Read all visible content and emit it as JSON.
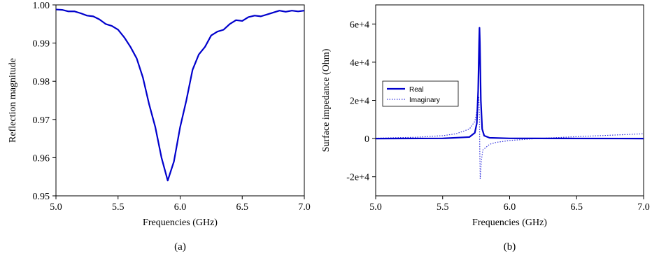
{
  "chart_data": [
    {
      "type": "line",
      "caption": "(a)",
      "title": "",
      "xlabel": "Frequencies (GHz)",
      "ylabel": "Reflection magnitude",
      "xlim": [
        5.0,
        7.0
      ],
      "ylim": [
        0.95,
        1.0
      ],
      "xticks": [
        "5.0",
        "5.5",
        "6.0",
        "6.5",
        "7.0"
      ],
      "yticks": [
        "0.95",
        "0.96",
        "0.97",
        "0.98",
        "0.99",
        "1.00"
      ],
      "grid": false,
      "series": [
        {
          "color": "#0000cc",
          "x": [
            5.0,
            5.05,
            5.1,
            5.15,
            5.2,
            5.25,
            5.3,
            5.35,
            5.4,
            5.45,
            5.5,
            5.55,
            5.6,
            5.65,
            5.7,
            5.75,
            5.8,
            5.85,
            5.9,
            5.95,
            6.0,
            6.05,
            6.1,
            6.15,
            6.2,
            6.25,
            6.3,
            6.35,
            6.4,
            6.45,
            6.5,
            6.55,
            6.6,
            6.65,
            6.7,
            6.75,
            6.8,
            6.85,
            6.9,
            6.95,
            7.0
          ],
          "y": [
            0.9988,
            0.9987,
            0.9983,
            0.9983,
            0.9978,
            0.9972,
            0.997,
            0.9962,
            0.995,
            0.9945,
            0.9935,
            0.9915,
            0.989,
            0.986,
            0.981,
            0.974,
            0.968,
            0.96,
            0.954,
            0.959,
            0.968,
            0.975,
            0.983,
            0.987,
            0.989,
            0.992,
            0.993,
            0.9935,
            0.995,
            0.996,
            0.9958,
            0.9968,
            0.9972,
            0.997,
            0.9975,
            0.998,
            0.9985,
            0.9982,
            0.9985,
            0.9983,
            0.9985
          ]
        }
      ]
    },
    {
      "type": "line",
      "caption": "(b)",
      "title": "",
      "xlabel": "Frequencies (GHz)",
      "ylabel": "Surface impedance (Ohm)",
      "xlim": [
        5.0,
        7.0
      ],
      "ylim": [
        -30000,
        70000
      ],
      "xticks": [
        "5.0",
        "5.5",
        "6.0",
        "6.5",
        "7.0"
      ],
      "yticks": [
        "-2e+4",
        "0",
        "2e+4",
        "4e+4",
        "6e+4"
      ],
      "grid": false,
      "legend": "left",
      "series": [
        {
          "name": "Real",
          "style": "solid",
          "color": "#0000cc",
          "x": [
            5.0,
            5.5,
            5.7,
            5.74,
            5.755,
            5.765,
            5.772,
            5.775,
            5.778,
            5.785,
            5.795,
            5.81,
            5.85,
            6.0,
            7.0
          ],
          "y": [
            0,
            100,
            800,
            3000,
            8000,
            25000,
            50000,
            58000,
            50000,
            20000,
            5000,
            1500,
            400,
            100,
            0
          ]
        },
        {
          "name": "Imaginary",
          "style": "dotted",
          "color": "#3333dd",
          "x": [
            5.0,
            5.3,
            5.5,
            5.6,
            5.7,
            5.74,
            5.76,
            5.77,
            5.775,
            5.777,
            5.78,
            5.785,
            5.79,
            5.8,
            5.85,
            5.9,
            6.0,
            6.2,
            6.5,
            7.0
          ],
          "y": [
            200,
            700,
            1500,
            2500,
            5000,
            9000,
            16000,
            22000,
            10000,
            -5000,
            -21000,
            -16000,
            -11000,
            -6000,
            -3000,
            -2000,
            -1000,
            0,
            1000,
            2500
          ]
        }
      ]
    }
  ]
}
